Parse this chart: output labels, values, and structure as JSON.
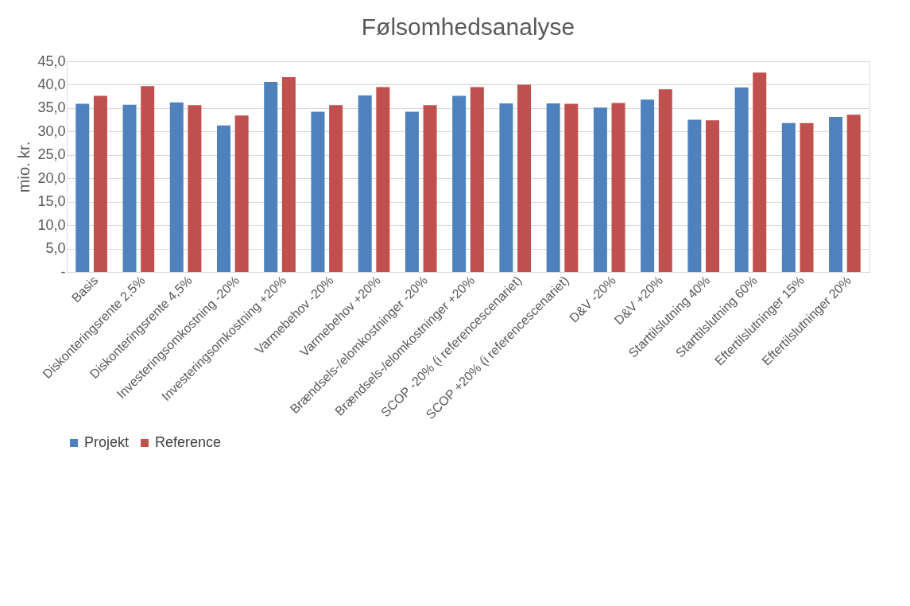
{
  "chart_data": {
    "type": "bar",
    "title": "Følsomhedsanalyse",
    "ylabel": "mio. kr.",
    "categories": [
      "Basis",
      "Diskonteringsrente 2,5%",
      "Diskonteringsrente 4,5%",
      "Investeringsomkostning -20%",
      "Investeringsomkostning +20%",
      "Varmebehov -20%",
      "Varmebehov +20%",
      "Brændsels-/elomkostninger -20%",
      "Brændsels-/elomkostninger +20%",
      "SCOP -20% (i referencescenariet)",
      "SCOP +20% (i referencescenariet)",
      "D&V -20%",
      "D&V +20%",
      "Starttilslutning 40%",
      "Starttilslutning 60%",
      "Eftertilslutninger 15%",
      "Eftertilslutninger 20%"
    ],
    "series": [
      {
        "name": "Projekt",
        "color": "#4f81bd",
        "values": [
          35.9,
          35.7,
          36.2,
          31.3,
          40.6,
          34.2,
          37.7,
          34.2,
          37.6,
          36.0,
          36.0,
          35.1,
          36.8,
          32.5,
          39.4,
          31.8,
          33.1
        ]
      },
      {
        "name": "Reference",
        "color": "#c0504d",
        "values": [
          37.6,
          39.7,
          35.6,
          33.4,
          41.6,
          35.6,
          39.5,
          35.6,
          39.5,
          40.0,
          35.9,
          36.1,
          39.0,
          32.4,
          42.6,
          31.8,
          33.6
        ]
      }
    ],
    "ylim": [
      0,
      45
    ],
    "yticks": [
      {
        "value": 0,
        "label": "-"
      },
      {
        "value": 5,
        "label": "5,0"
      },
      {
        "value": 10,
        "label": "10,0"
      },
      {
        "value": 15,
        "label": "15,0"
      },
      {
        "value": 20,
        "label": "20,0"
      },
      {
        "value": 25,
        "label": "25,0"
      },
      {
        "value": 30,
        "label": "30,0"
      },
      {
        "value": 35,
        "label": "35,0"
      },
      {
        "value": 40,
        "label": "40,0"
      },
      {
        "value": 45,
        "label": "45,0"
      }
    ],
    "grid": "y",
    "legend": "bottom"
  }
}
